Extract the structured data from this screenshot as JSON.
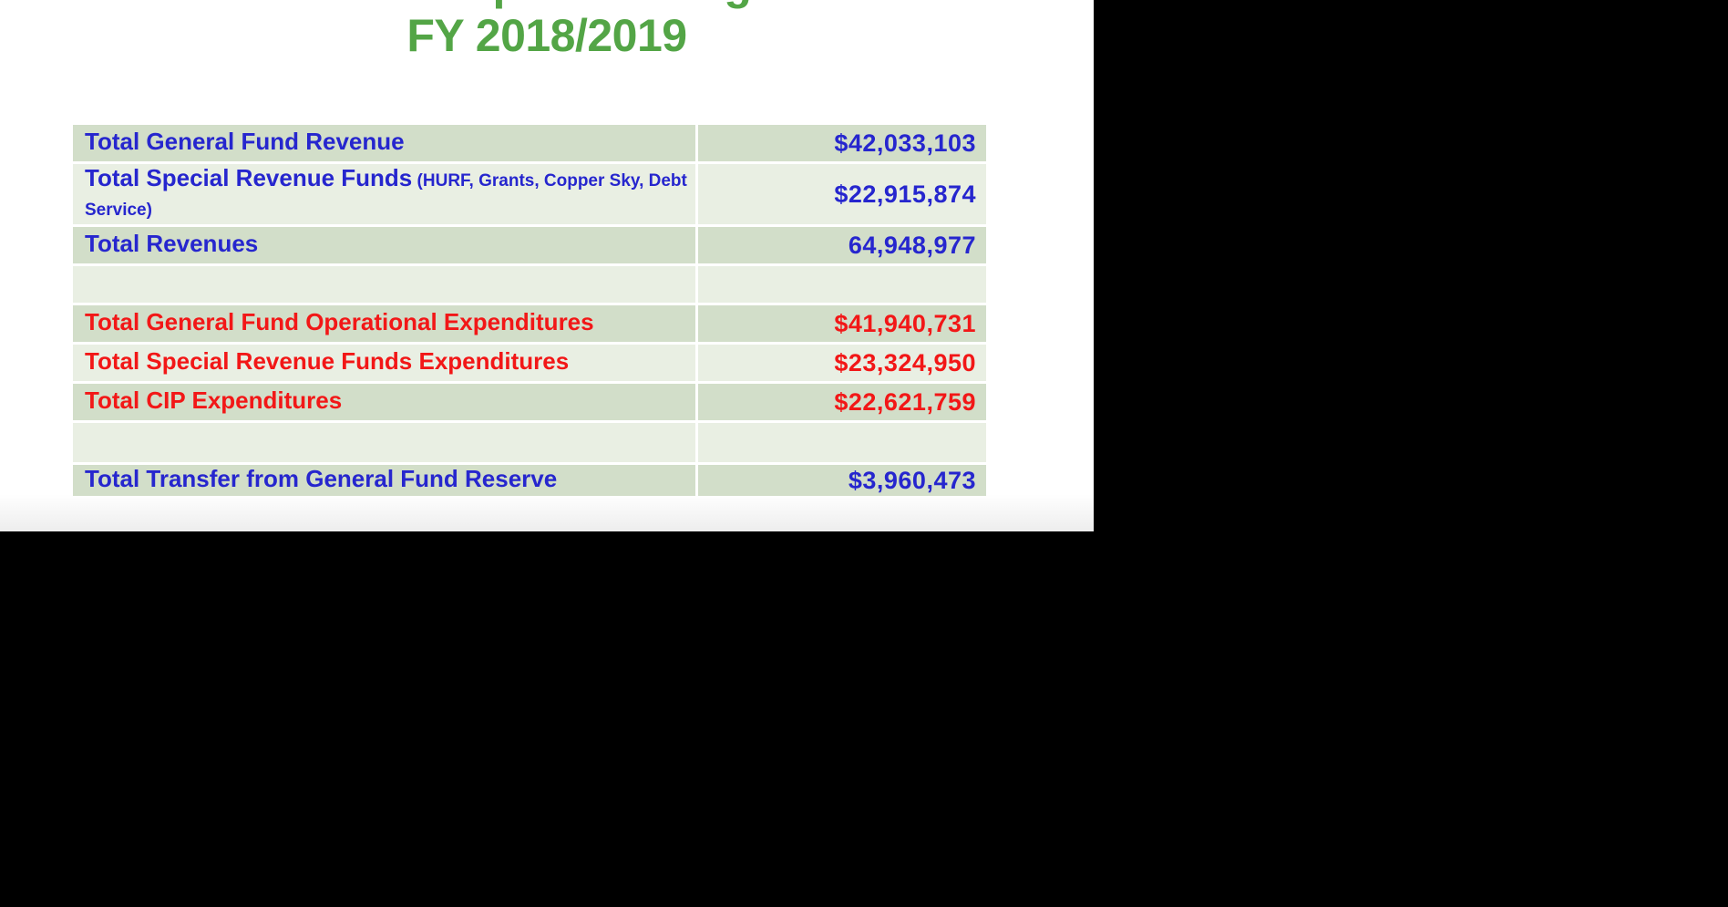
{
  "slide": {
    "title_line1": "Total Proposed Budget",
    "title_line2": "FY 2018/2019"
  },
  "colors": {
    "title_green": "#53A546",
    "revenue_blue": "#2626CE",
    "expenditure_red": "#F21717",
    "row_dark_bg": "#D2DEC9",
    "row_light_bg": "#E9EFE3",
    "slide_bg": "#FFFFFF",
    "backdrop": "#000000"
  },
  "table": {
    "rows": [
      {
        "label": "Total General Fund Revenue",
        "value": "$42,033,103"
      },
      {
        "label": "Total Special Revenue Funds",
        "label_note": " (HURF, Grants, Copper Sky, Debt Service)",
        "value": "$22,915,874"
      },
      {
        "label": "Total Revenues",
        "value": "64,948,977"
      },
      {
        "label": "",
        "value": ""
      },
      {
        "label": "Total General Fund Operational Expenditures",
        "value": "$41,940,731"
      },
      {
        "label": "Total Special Revenue Funds Expenditures",
        "value": "$23,324,950"
      },
      {
        "label": "Total CIP Expenditures",
        "value": "$22,621,759"
      },
      {
        "label": "",
        "value": ""
      },
      {
        "label": "Total Transfer from General Fund Reserve",
        "value": "$3,960,473"
      }
    ]
  }
}
